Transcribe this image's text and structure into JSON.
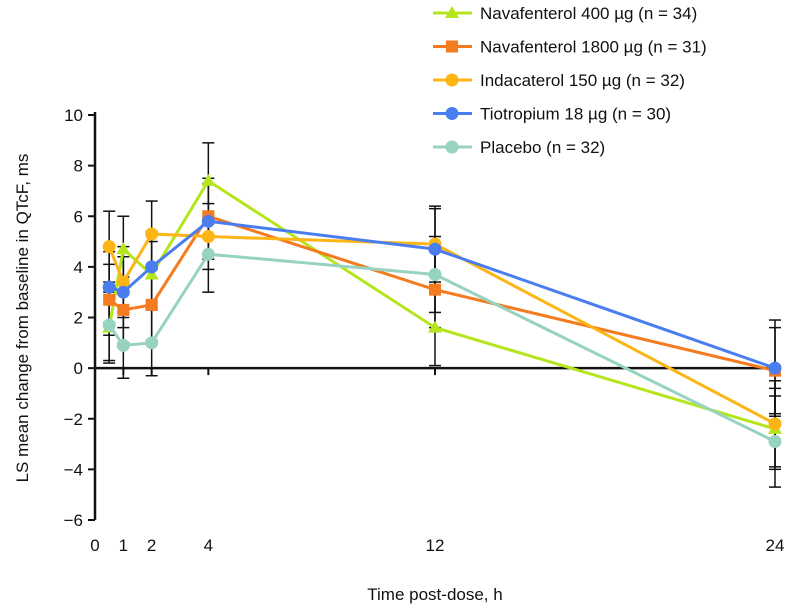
{
  "chart_data": {
    "type": "line",
    "title": "",
    "xlabel": "Time post-dose, h",
    "ylabel": "LS mean change from baseline in QTcF, ms",
    "xlim": [
      0,
      24
    ],
    "ylim": [
      -6,
      10
    ],
    "xticks": [
      0,
      1,
      2,
      4,
      12,
      24
    ],
    "yticks": [
      -6,
      -4,
      -2,
      0,
      2,
      4,
      6,
      8,
      10
    ],
    "legend_position": "top-right",
    "x": [
      0.5,
      1,
      2,
      4,
      12,
      24
    ],
    "series": [
      {
        "name": "Navafenterol 400 µg (n = 34)",
        "color": "#b5e61d",
        "marker": "triangle",
        "values": [
          1.6,
          4.7,
          3.7,
          7.4,
          1.6,
          -2.4
        ],
        "err": [
          1.4,
          1.3,
          1.3,
          1.5,
          1.5,
          1.6
        ]
      },
      {
        "name": "Navafenterol 1800 µg (n = 31)",
        "color": "#f47b20",
        "marker": "square",
        "values": [
          2.7,
          2.3,
          2.5,
          6.0,
          3.1,
          -0.1
        ],
        "err": [
          1.4,
          1.3,
          1.4,
          1.5,
          1.5,
          1.7
        ]
      },
      {
        "name": "Indacaterol 150 µg (n = 32)",
        "color": "#fdb515",
        "marker": "circle",
        "values": [
          4.8,
          3.4,
          5.3,
          5.2,
          4.9,
          -2.2
        ],
        "err": [
          1.4,
          1.4,
          1.3,
          1.3,
          1.5,
          1.7
        ]
      },
      {
        "name": "Tiotropium 18 µg (n = 30)",
        "color": "#4a7ef0",
        "marker": "circle",
        "values": [
          3.2,
          3.0,
          4.0,
          5.8,
          4.7,
          0.0
        ],
        "err": [
          1.4,
          1.4,
          1.4,
          1.5,
          1.6,
          1.9
        ]
      },
      {
        "name": "Placebo (n = 32)",
        "color": "#98d2c0",
        "marker": "circle",
        "values": [
          1.7,
          0.9,
          1.0,
          4.5,
          3.7,
          -2.9
        ],
        "err": [
          1.4,
          1.3,
          1.3,
          1.5,
          1.5,
          1.8
        ]
      }
    ]
  }
}
